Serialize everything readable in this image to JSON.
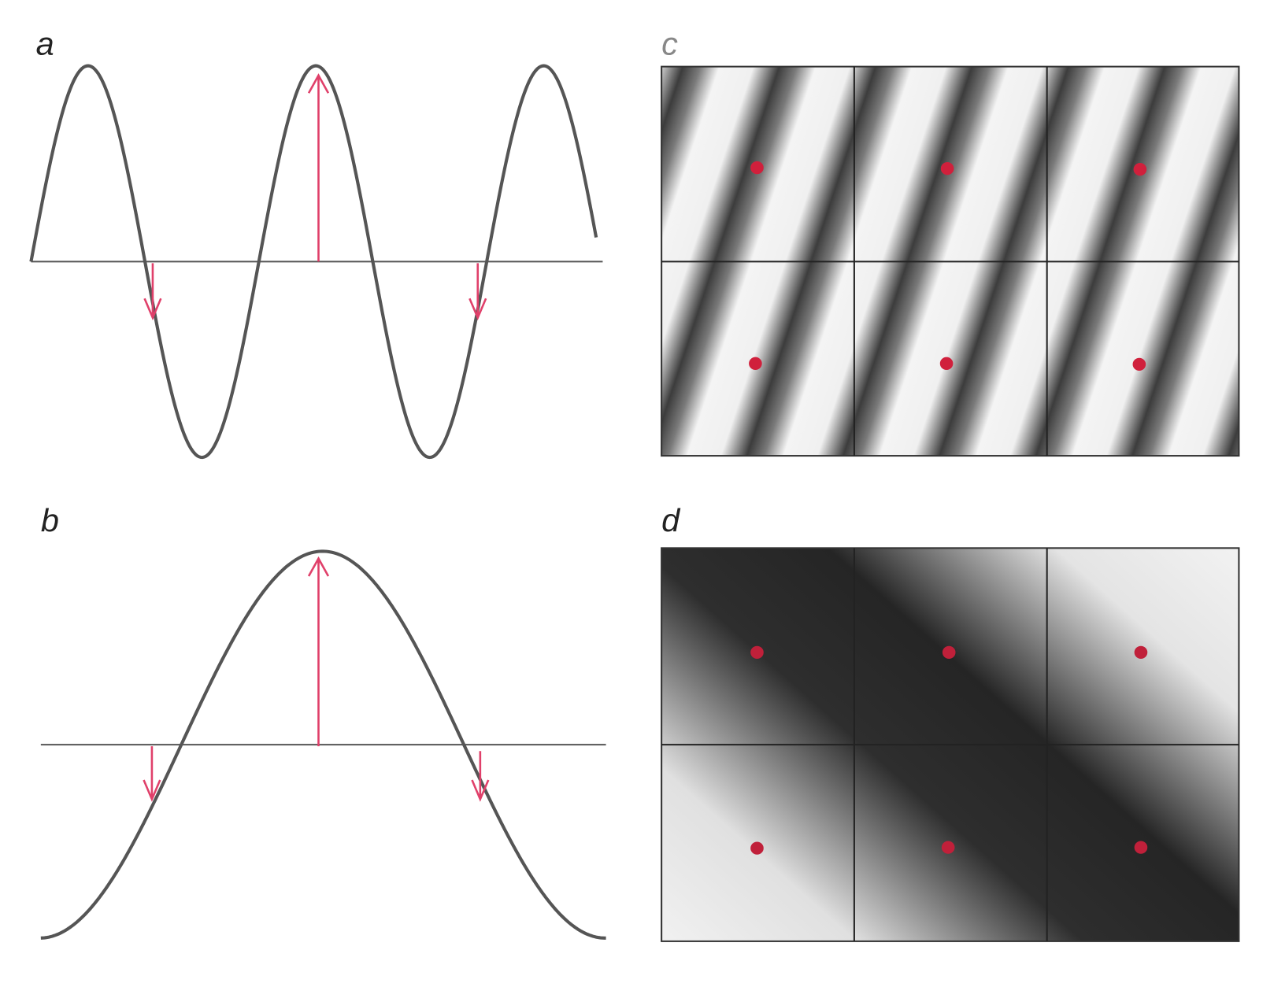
{
  "panels": {
    "a": {
      "label": "a"
    },
    "b": {
      "label": "b"
    },
    "c": {
      "label": "c"
    },
    "d": {
      "label": "d"
    }
  }
}
